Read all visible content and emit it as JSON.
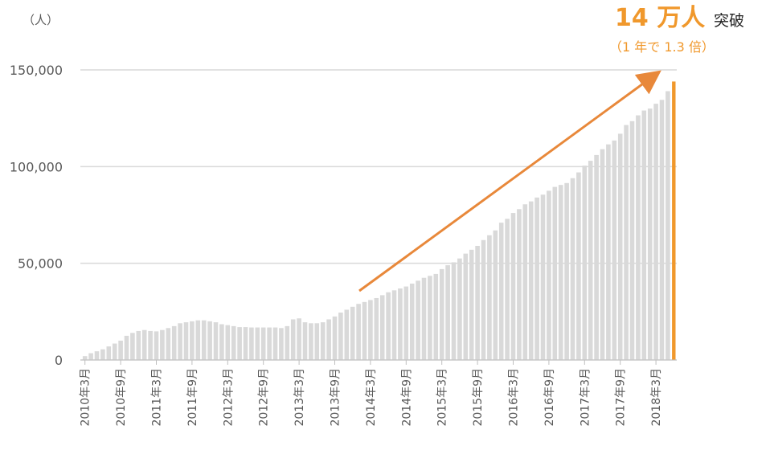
{
  "chart_data": {
    "type": "bar",
    "y_unit": "（人）",
    "annotation_main": "14 万人",
    "annotation_suffix": "突破",
    "annotation_sub": "（1 年で 1.3 倍）",
    "annotation_color": "#f0982c",
    "categories": [
      "2010年3月",
      null,
      null,
      null,
      null,
      null,
      "2010年9月",
      null,
      null,
      null,
      null,
      null,
      "2011年3月",
      null,
      null,
      null,
      null,
      null,
      "2011年9月",
      null,
      null,
      null,
      null,
      null,
      "2012年3月",
      null,
      null,
      null,
      null,
      null,
      "2012年9月",
      null,
      null,
      null,
      null,
      null,
      "2013年3月",
      null,
      null,
      null,
      null,
      null,
      "2013年9月",
      null,
      null,
      null,
      null,
      null,
      "2014年3月",
      null,
      null,
      null,
      null,
      null,
      "2014年9月",
      null,
      null,
      null,
      null,
      null,
      "2015年3月",
      null,
      null,
      null,
      null,
      null,
      "2015年9月",
      null,
      null,
      null,
      null,
      null,
      "2016年3月",
      null,
      null,
      null,
      null,
      null,
      "2016年9月",
      null,
      null,
      null,
      null,
      null,
      "2017年3月",
      null,
      null,
      null,
      null,
      null,
      "2017年9月",
      null,
      null,
      null,
      null,
      null,
      "2018年3月",
      null,
      null,
      null
    ],
    "values": [
      2000,
      3500,
      4500,
      5500,
      7000,
      8500,
      10000,
      12500,
      14000,
      15000,
      15500,
      15000,
      14800,
      15500,
      16500,
      17500,
      19000,
      19500,
      20000,
      20500,
      20500,
      20000,
      19500,
      18500,
      18000,
      17500,
      17000,
      17000,
      16800,
      16800,
      16800,
      16800,
      16800,
      16500,
      17500,
      21000,
      21500,
      19500,
      19000,
      19000,
      19500,
      21000,
      22500,
      24500,
      26000,
      27500,
      29000,
      30000,
      31000,
      32000,
      33500,
      35000,
      36000,
      37000,
      38000,
      39500,
      41000,
      42500,
      43500,
      44500,
      47000,
      49000,
      50500,
      52500,
      55000,
      57000,
      59000,
      62000,
      64500,
      67000,
      71000,
      73000,
      76000,
      78000,
      80500,
      82000,
      84000,
      85500,
      87500,
      89500,
      90500,
      91500,
      94000,
      97000,
      100500,
      103000,
      106000,
      109000,
      111500,
      113500,
      117000,
      121500,
      123500,
      126500,
      129000,
      130000,
      132500,
      134500,
      139000,
      144000
    ],
    "color": "#d9d9d9",
    "last_bar_color": "#f0982c",
    "ylim": [
      0,
      150000
    ],
    "yticks": [
      0,
      {
        "value": 50000,
        "label": "50,000"
      },
      {
        "value": 100000,
        "label": "100,000"
      },
      {
        "value": 150000,
        "label": "150,000"
      }
    ],
    "grid": true
  }
}
